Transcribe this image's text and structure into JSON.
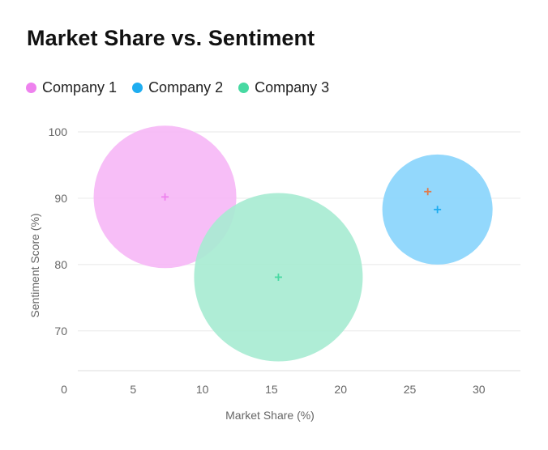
{
  "chart_data": {
    "type": "bubble",
    "title": "Market Share vs. Sentiment",
    "xlabel": "Market Share (%)",
    "ylabel": "Sentiment Score (%)",
    "xlim": [
      0,
      33
    ],
    "ylim": [
      64,
      100
    ],
    "xticks": [
      "0",
      "5",
      "10",
      "15",
      "20",
      "25",
      "30"
    ],
    "yticks": [
      "70",
      "80",
      "90",
      "100"
    ],
    "grid": true,
    "legend_position": "top-left",
    "series": [
      {
        "name": "Company 1",
        "color": "#ee82ee",
        "x": 7.3,
        "y": 90.2,
        "size": 25.7,
        "fill": "#f6b7f6",
        "opacity": 0.9
      },
      {
        "name": "Company 2",
        "color": "#1eadf0",
        "x": 27.0,
        "y": 88.3,
        "size": 20.0,
        "fill": "#8ad5fc",
        "opacity": 0.92
      },
      {
        "name": "Company 3",
        "color": "#47d9a2",
        "x": 15.5,
        "y": 78.1,
        "size": 30.5,
        "fill": "#a6ebd1",
        "opacity": 0.9
      }
    ],
    "extra_markers": [
      {
        "x": 26.3,
        "y": 91.0,
        "color": "#e07b4a"
      }
    ]
  }
}
